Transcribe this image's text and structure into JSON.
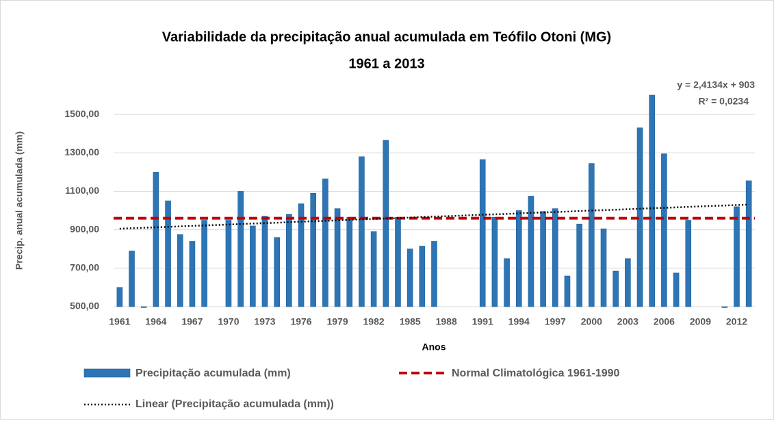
{
  "chart_data": {
    "type": "bar",
    "title": "Variabilidade da precipitação anual acumulada em Teófilo Otoni (MG)",
    "subtitle": "1961 a 2013",
    "y_label": "Precip. anual acumulada (mm)",
    "x_label": "Anos",
    "categories": [
      "1961",
      null,
      null,
      "1964",
      null,
      null,
      "1967",
      null,
      null,
      "1970",
      null,
      null,
      "1973",
      null,
      null,
      "1976",
      null,
      null,
      "1979",
      null,
      null,
      "1982",
      null,
      null,
      "1985",
      null,
      null,
      "1988",
      null,
      null,
      "1991",
      null,
      null,
      "1994",
      null,
      null,
      "1997",
      null,
      null,
      "2000",
      null,
      null,
      "2003",
      null,
      null,
      "2006",
      null,
      null,
      "2009",
      null,
      null,
      "2012",
      null
    ],
    "series": [
      {
        "name": "Precipitação acumulada (mm)",
        "color": "#2e75b6",
        "values": [
          600,
          789,
          495,
          1200,
          1050,
          875,
          840,
          950,
          null,
          950,
          1100,
          920,
          970,
          860,
          980,
          1035,
          1090,
          1165,
          1010,
          965,
          1280,
          890,
          1365,
          965,
          800,
          815,
          840,
          null,
          null,
          null,
          1265,
          965,
          750,
          1000,
          1075,
          995,
          1010,
          660,
          930,
          1245,
          905,
          685,
          750,
          1430,
          1600,
          1295,
          675,
          950,
          null,
          null,
          495,
          1020,
          1155
        ]
      }
    ],
    "normal": {
      "name": "Normal Climatológica 1961-1990",
      "color": "#c00000",
      "value": 960
    },
    "trend": {
      "name": "Linear (Precipitação acumulada (mm))",
      "color": "#000000",
      "slope": 2.4134,
      "intercept": 903,
      "equation_label": "y = 2,4134x + 903",
      "r2_label": "R² = 0,0234"
    },
    "ylim": [
      500,
      1600
    ],
    "yticks": [
      {
        "value": 500,
        "label": "500,00"
      },
      {
        "value": 700,
        "label": "700,00"
      },
      {
        "value": 900,
        "label": "900,00"
      },
      {
        "value": 1100,
        "label": "1100,00"
      },
      {
        "value": 1300,
        "label": "1300,00"
      },
      {
        "value": 1500,
        "label": "1500,00"
      }
    ],
    "grid": true
  }
}
